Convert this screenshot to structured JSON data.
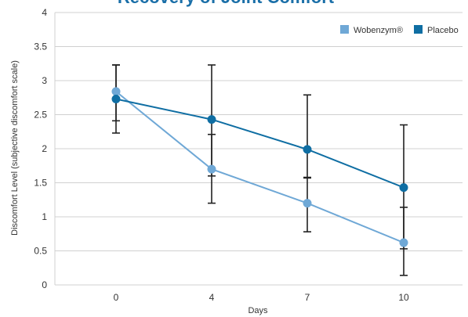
{
  "chart_data": {
    "type": "line",
    "title": "Recovery of Joint Comfort",
    "xlabel": "Days",
    "ylabel": "Discomfort Level (subjective discomfort scale)",
    "categories": [
      "0",
      "4",
      "7",
      "10"
    ],
    "ylim": [
      0,
      4
    ],
    "yticks": [
      "0",
      "0.5",
      "1",
      "1.5",
      "2",
      "2.5",
      "3",
      "3.5",
      "4"
    ],
    "grid": true,
    "legend_position": "top-right",
    "series": [
      {
        "name": "Wobenzym®",
        "color": "#6fa8d6",
        "values": [
          2.84,
          1.7,
          1.2,
          0.62
        ],
        "error_low": [
          2.23,
          1.2,
          0.78,
          0.14
        ],
        "error_high": [
          3.23,
          2.21,
          1.58,
          1.14
        ]
      },
      {
        "name": "Placebo",
        "color": "#0f6ea3",
        "values": [
          2.73,
          2.43,
          1.99,
          1.43
        ],
        "error_low": [
          2.41,
          1.6,
          1.57,
          0.53
        ],
        "error_high": [
          3.23,
          3.23,
          2.79,
          2.35
        ]
      }
    ]
  }
}
